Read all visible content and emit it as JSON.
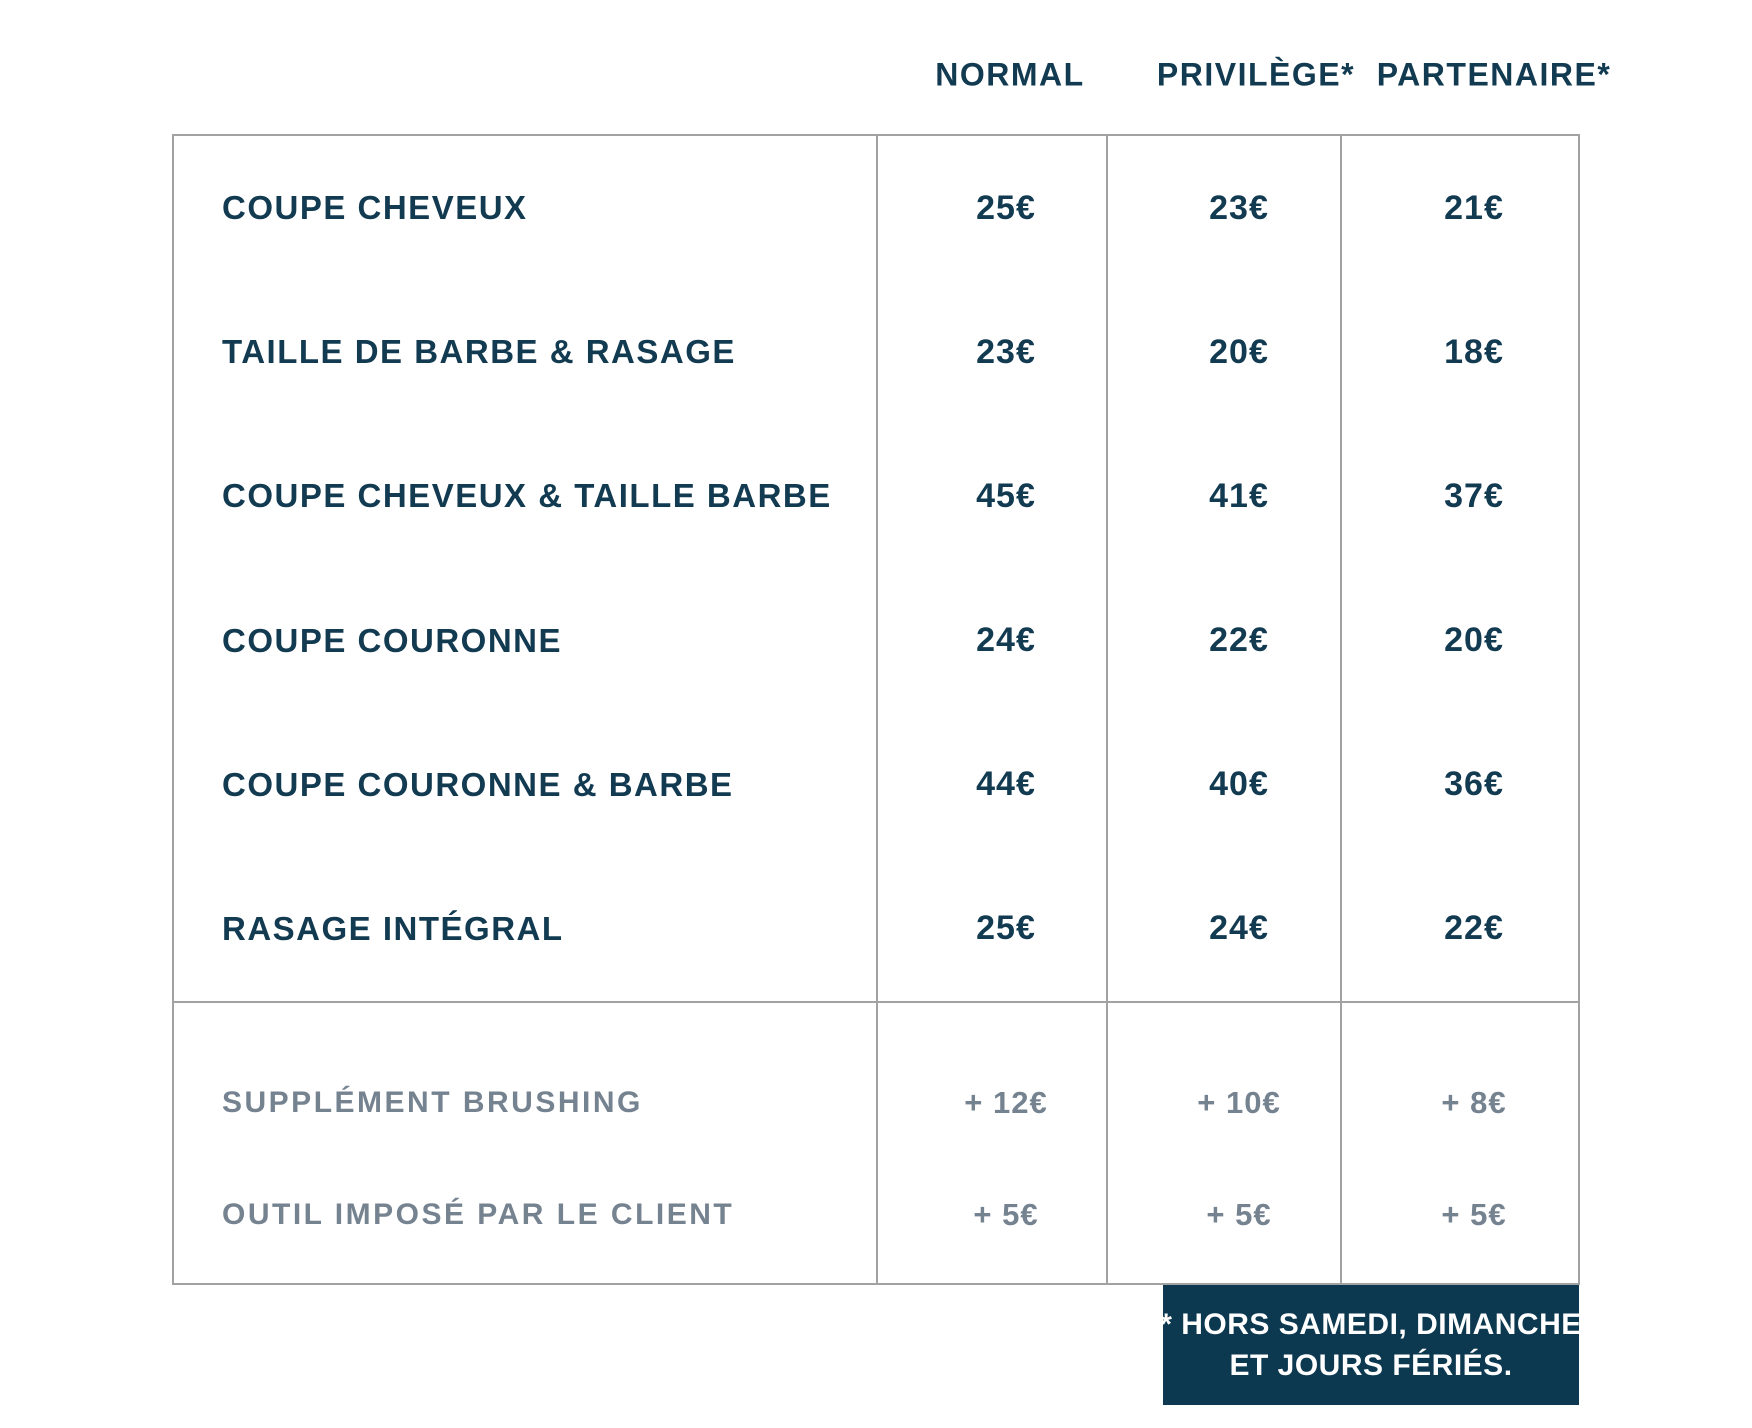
{
  "columns": [
    "NORMAL",
    "PRIVILÈGE*",
    "PARTENAIRE*"
  ],
  "services": [
    {
      "label": "COUPE CHEVEUX",
      "prices": [
        "25€",
        "23€",
        "21€"
      ]
    },
    {
      "label": "TAILLE DE BARBE & RASAGE",
      "prices": [
        "23€",
        "20€",
        "18€"
      ]
    },
    {
      "label": "COUPE CHEVEUX & TAILLE BARBE",
      "prices": [
        "45€",
        "41€",
        "37€"
      ]
    },
    {
      "label": "COUPE COURONNE",
      "prices": [
        "24€",
        "22€",
        "20€"
      ]
    },
    {
      "label": "COUPE COURONNE & BARBE",
      "prices": [
        "44€",
        "40€",
        "36€"
      ]
    },
    {
      "label": "RASAGE INTÉGRAL",
      "prices": [
        "25€",
        "24€",
        "22€"
      ]
    }
  ],
  "supplements": [
    {
      "label": "SUPPLÉMENT BRUSHING",
      "prices": [
        "+ 12€",
        "+ 10€",
        "+ 8€"
      ]
    },
    {
      "label": "OUTIL IMPOSÉ PAR LE CLIENT",
      "prices": [
        "+ 5€",
        "+ 5€",
        "+ 5€"
      ]
    }
  ],
  "footnote": {
    "line1": "* HORS SAMEDI, DIMANCHE",
    "line2": "ET JOURS FÉRIÉS."
  },
  "colors": {
    "text_navy": "#123a51",
    "text_gray": "#75828f",
    "border_gray": "#a2a2a2",
    "footnote_bg": "#0c3850",
    "footnote_text": "#ffffff"
  }
}
